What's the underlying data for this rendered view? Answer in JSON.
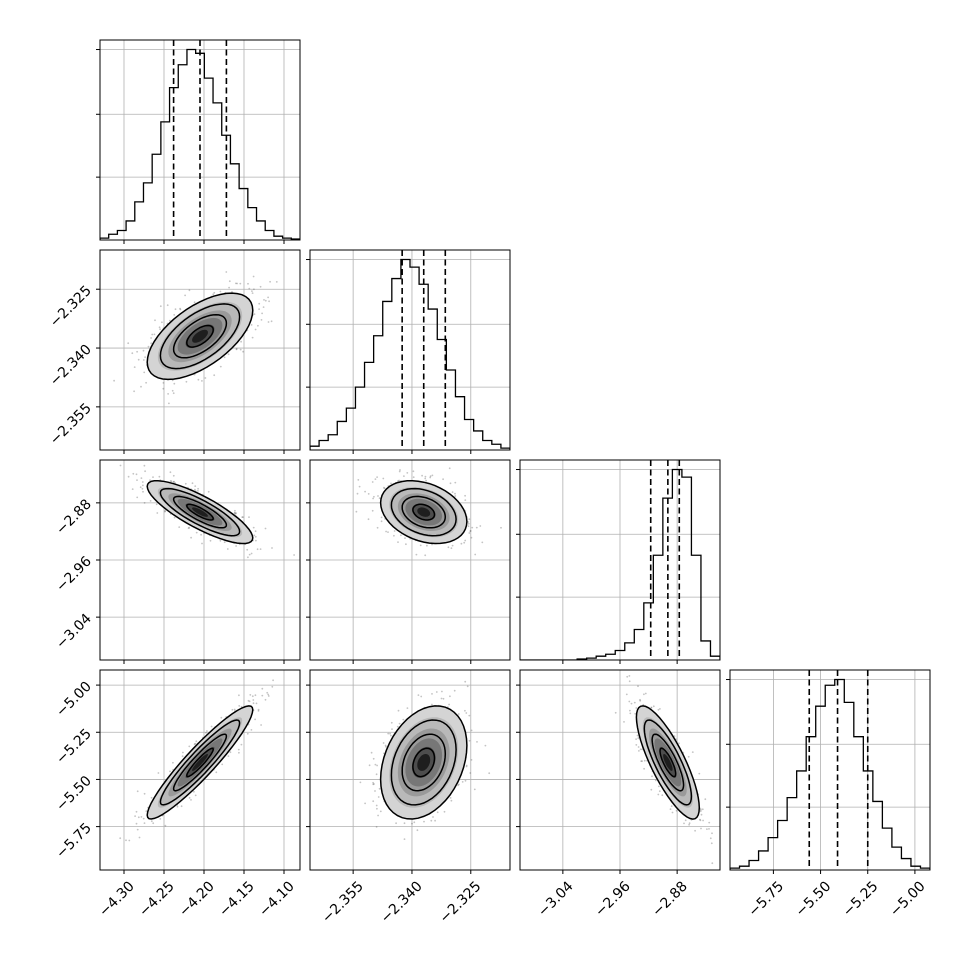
{
  "chart_data": {
    "type": "corner",
    "parameters": 4,
    "grid": true,
    "quantiles": [
      0.16,
      0.5,
      0.84
    ],
    "axes": [
      {
        "index": 0,
        "range": [
          -4.33,
          -4.08
        ],
        "ticks": [
          -4.3,
          -4.25,
          -4.2,
          -4.15,
          -4.1
        ],
        "tick_labels": [
          "−4.30",
          "−4.25",
          "−4.20",
          "−4.15",
          "−4.10"
        ],
        "quantile_values": [
          -4.238,
          -4.205,
          -4.172
        ],
        "hist_density": [
          0.01,
          0.03,
          0.05,
          0.1,
          0.2,
          0.3,
          0.45,
          0.62,
          0.8,
          0.92,
          1.0,
          0.98,
          0.85,
          0.72,
          0.55,
          0.4,
          0.27,
          0.17,
          0.1,
          0.05,
          0.02,
          0.01,
          0.005
        ]
      },
      {
        "index": 1,
        "range": [
          -2.366,
          -2.315
        ],
        "ticks": [
          -2.355,
          -2.34,
          -2.325
        ],
        "tick_labels": [
          "−2.355",
          "−2.340",
          "−2.325"
        ],
        "quantile_values": [
          -2.3425,
          -2.337,
          -2.3315
        ],
        "hist_density": [
          0.02,
          0.05,
          0.08,
          0.15,
          0.22,
          0.33,
          0.46,
          0.6,
          0.78,
          0.9,
          1.0,
          0.96,
          0.87,
          0.74,
          0.58,
          0.42,
          0.28,
          0.16,
          0.1,
          0.05,
          0.03,
          0.01
        ]
      },
      {
        "index": 2,
        "range": [
          -3.1,
          -2.82
        ],
        "ticks": [
          -3.04,
          -2.96,
          -2.88
        ],
        "tick_labels": [
          "−3.04",
          "−2.96",
          "−2.88"
        ],
        "quantile_values": [
          -2.917,
          -2.893,
          -2.877
        ],
        "hist_density": [
          0.0,
          0.0,
          0.0,
          0.0,
          0.0,
          0.0,
          0.005,
          0.01,
          0.02,
          0.03,
          0.05,
          0.09,
          0.16,
          0.3,
          0.55,
          0.85,
          1.0,
          0.96,
          0.55,
          0.1,
          0.02
        ]
      },
      {
        "index": 3,
        "range": [
          -5.98,
          -4.92
        ],
        "ticks": [
          -5.75,
          -5.5,
          -5.25,
          -5.0
        ],
        "tick_labels": [
          "−5.75",
          "−5.50",
          "−5.25",
          "−5.00"
        ],
        "quantile_values": [
          -5.56,
          -5.41,
          -5.25
        ],
        "hist_density": [
          0.01,
          0.02,
          0.05,
          0.1,
          0.17,
          0.26,
          0.38,
          0.52,
          0.7,
          0.86,
          0.97,
          1.0,
          0.88,
          0.7,
          0.52,
          0.36,
          0.22,
          0.12,
          0.06,
          0.02,
          0.01
        ]
      }
    ],
    "marginal_ylim": [
      0,
      1.05
    ],
    "marginal_yticks": [
      0.33,
      0.66,
      1.0
    ],
    "pairs": [
      {
        "row": 1,
        "col": 0,
        "mean": [
          -4.205,
          -2.337
        ],
        "sd": [
          0.033,
          0.0055
        ],
        "rho": 0.6
      },
      {
        "row": 2,
        "col": 0,
        "mean": [
          -4.205,
          -2.893
        ],
        "sd": [
          0.033,
          0.022
        ],
        "rho": -0.82
      },
      {
        "row": 2,
        "col": 1,
        "mean": [
          -2.337,
          -2.893
        ],
        "sd": [
          0.0055,
          0.022
        ],
        "rho": -0.3
      },
      {
        "row": 3,
        "col": 0,
        "mean": [
          -4.205,
          -5.41
        ],
        "sd": [
          0.033,
          0.15
        ],
        "rho": 0.93
      },
      {
        "row": 3,
        "col": 1,
        "mean": [
          -2.337,
          -5.41
        ],
        "sd": [
          0.0055,
          0.15
        ],
        "rho": 0.3
      },
      {
        "row": 3,
        "col": 2,
        "mean": [
          -2.893,
          -5.41
        ],
        "sd": [
          0.022,
          0.15
        ],
        "rho": -0.8
      }
    ],
    "contour_levels_sigma": [
      0.5,
      1.0,
      1.5,
      2.0
    ]
  }
}
